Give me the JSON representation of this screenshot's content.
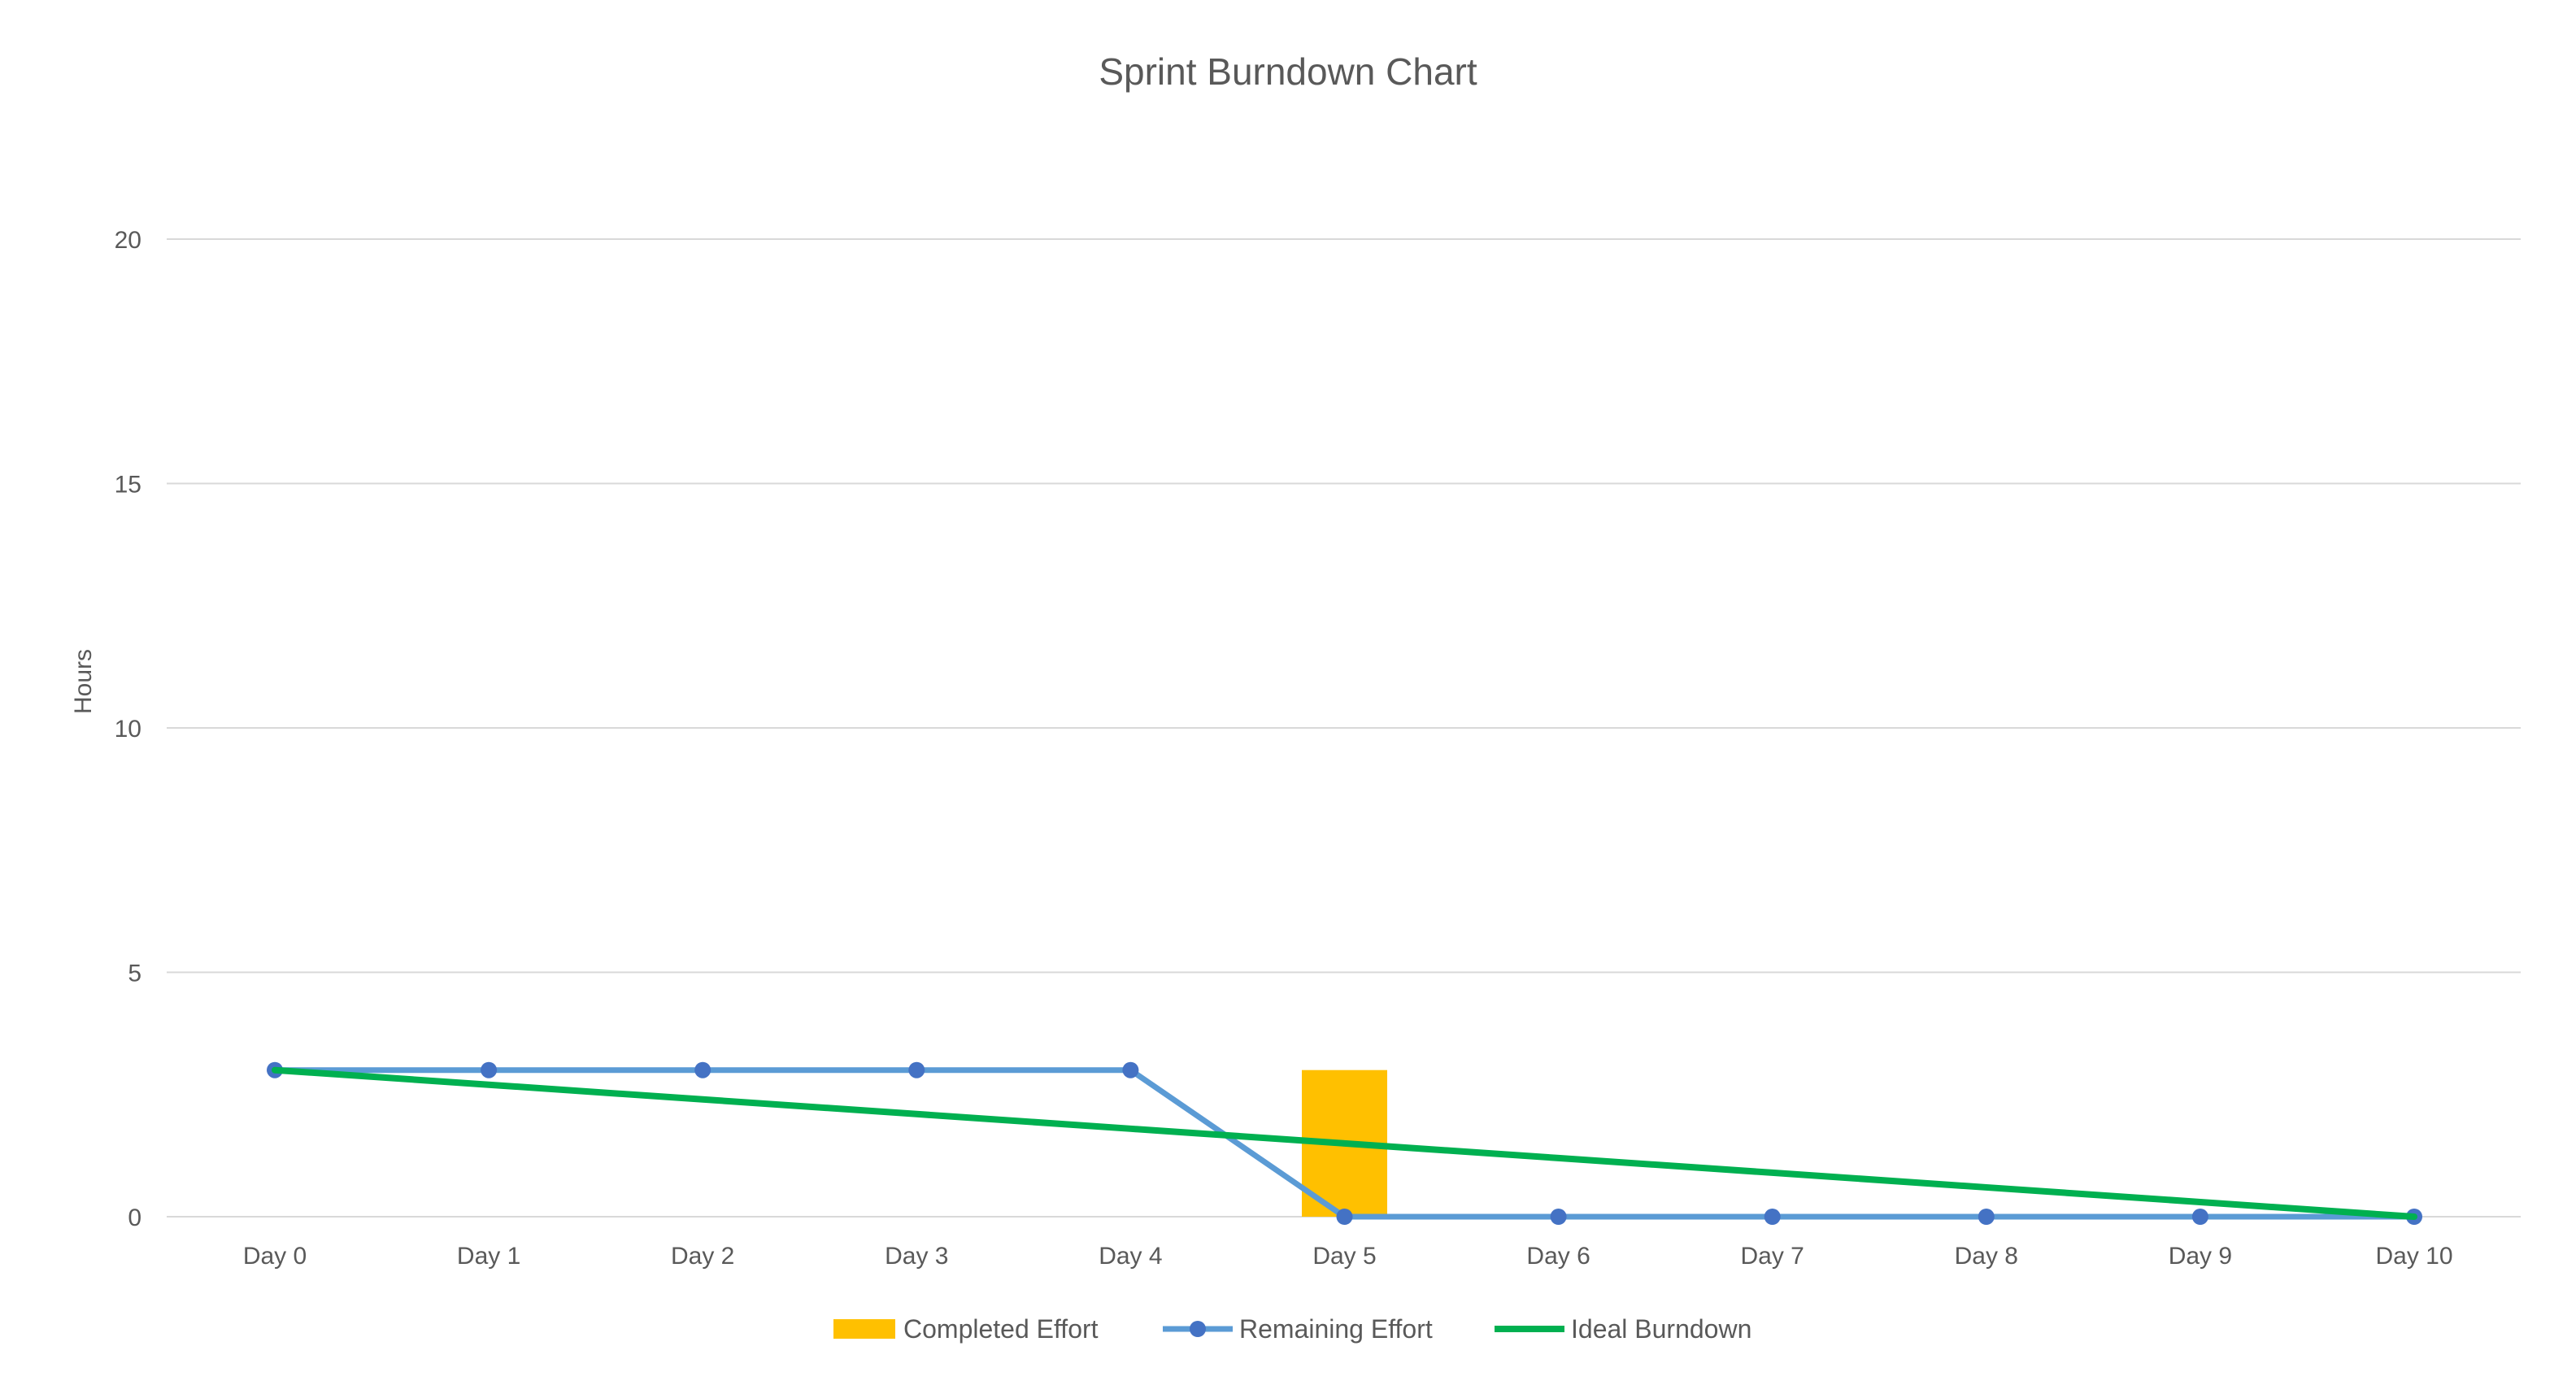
{
  "chart_data": {
    "type": "bar+line",
    "title": "Sprint Burndown Chart",
    "xlabel": "",
    "ylabel": "Hours",
    "categories": [
      "Day 0",
      "Day 1",
      "Day 2",
      "Day 3",
      "Day 4",
      "Day 5",
      "Day 6",
      "Day 7",
      "Day 8",
      "Day 9",
      "Day 10"
    ],
    "ylim": [
      0,
      20
    ],
    "yticks": [
      0,
      5,
      10,
      15,
      20
    ],
    "grid": true,
    "legend_position": "bottom",
    "series": [
      {
        "name": "Completed Effort",
        "type": "bar",
        "color": "#FFC000",
        "values": [
          null,
          null,
          null,
          null,
          null,
          3,
          null,
          null,
          null,
          null,
          null
        ]
      },
      {
        "name": "Remaining Effort",
        "type": "line",
        "markers": true,
        "color": "#5B9BD5",
        "marker_color": "#4472C4",
        "values": [
          3,
          3,
          3,
          3,
          3,
          0,
          0,
          0,
          0,
          0,
          0
        ]
      },
      {
        "name": "Ideal Burndown",
        "type": "line",
        "markers": false,
        "color": "#00B050",
        "values": [
          3,
          2.7,
          2.4,
          2.1,
          1.8,
          1.5,
          1.2,
          0.9,
          0.6,
          0.3,
          0
        ]
      }
    ]
  }
}
